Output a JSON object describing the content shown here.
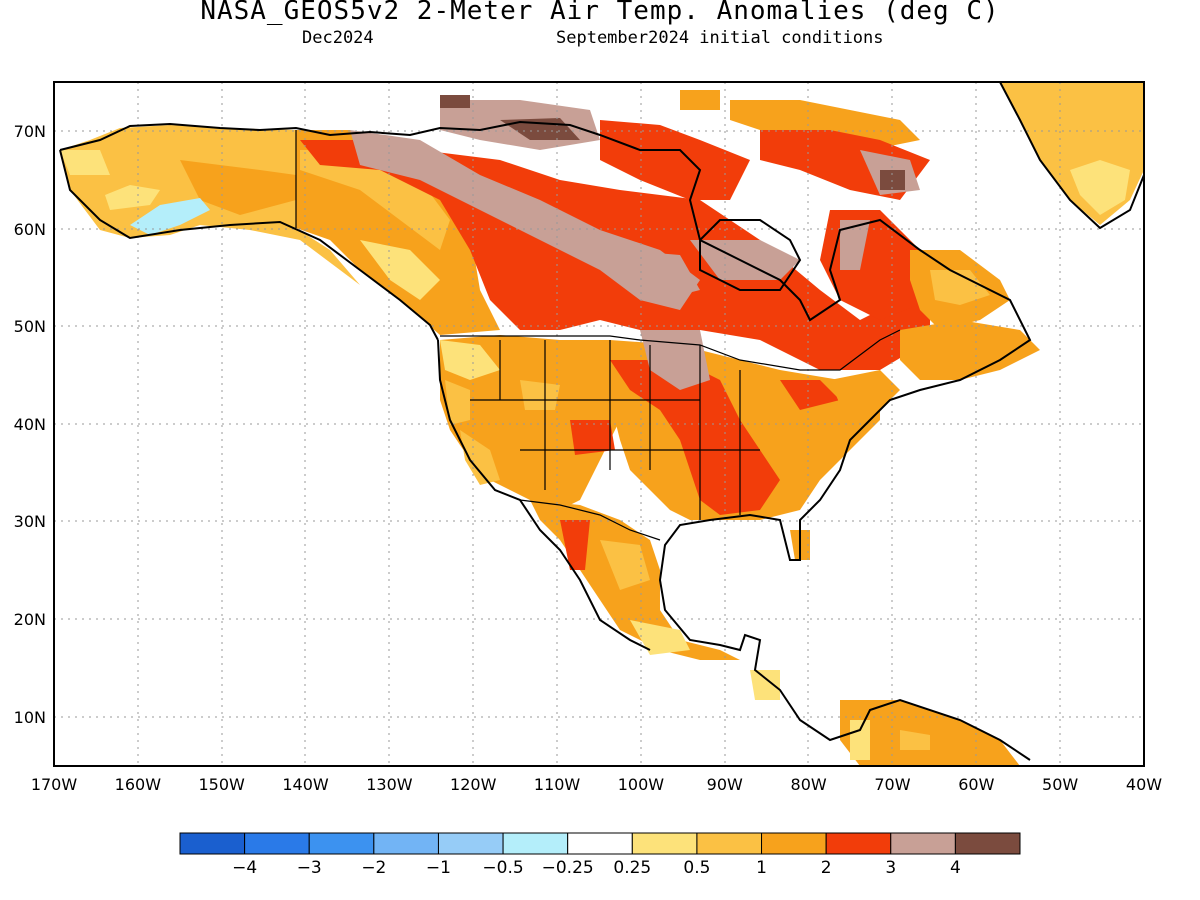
{
  "title": "NASA_GEOS5v2 2-Meter Air Temp. Anomalies (deg C)",
  "subtitle_left": "Dec2024",
  "subtitle_right": "September2024 initial conditions",
  "map": {
    "lon_range": [
      -170,
      -40
    ],
    "lat_range": [
      5,
      75
    ],
    "grid": true,
    "lon_ticks": [
      "170W",
      "160W",
      "150W",
      "140W",
      "130W",
      "120W",
      "110W",
      "100W",
      "90W",
      "80W",
      "70W",
      "60W",
      "50W",
      "40W"
    ],
    "lat_ticks": [
      "10N",
      "20N",
      "30N",
      "40N",
      "50N",
      "60N",
      "70N"
    ],
    "region": "North America"
  },
  "colorbar": {
    "colors": [
      "#1a5fcf",
      "#2a7ae8",
      "#3c92f0",
      "#72b4f5",
      "#96ccf7",
      "#b4eefa",
      "#ffffff",
      "#fde27a",
      "#fbc144",
      "#f7a21c",
      "#f23d0a",
      "#c8a096",
      "#7b4b3e"
    ],
    "labels": [
      "−4",
      "−3",
      "−2",
      "−1",
      "−0.5",
      "−0.25",
      "0.25",
      "0.5",
      "1",
      "2",
      "3",
      "4"
    ]
  }
}
